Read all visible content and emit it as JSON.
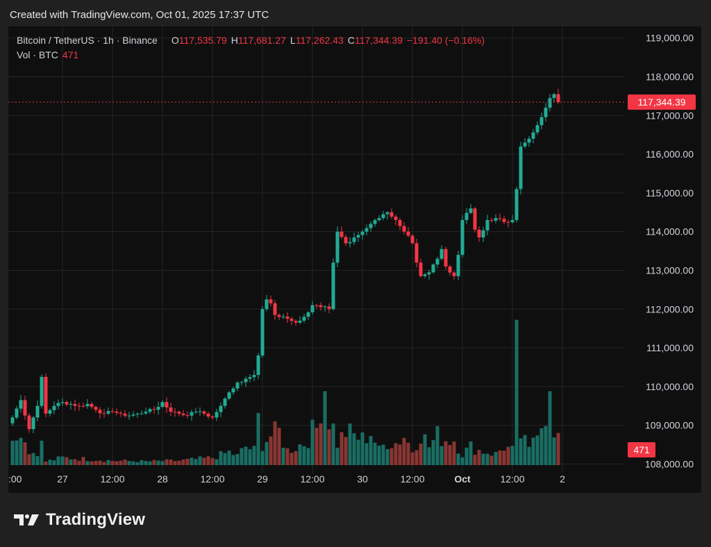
{
  "created_text": "Created with TradingView.com, Oct 01, 2025 17:37 UTC",
  "legend": {
    "symbol": "Bitcoin / TetherUS · 1h · Binance",
    "o_label": "O",
    "o_value": "117,535.79",
    "h_label": "H",
    "h_value": "117,681.27",
    "l_label": "L",
    "l_value": "117,262.43",
    "c_label": "C",
    "c_value": "117,344.39",
    "change": "−191.40 (−0.16%)",
    "vol_label": "Vol · BTC",
    "vol_value": "471"
  },
  "brand": "TradingView",
  "colors": {
    "up": "#22ab94",
    "down": "#f23645",
    "up_vol": "#1a6e63",
    "down_vol": "#8a3633",
    "panel": "#0f0f0f",
    "grid": "#262626",
    "text": "#d1d4dc"
  },
  "chart_data": {
    "type": "candlestick",
    "symbol": "Bitcoin / TetherUS",
    "interval": "1h",
    "exchange": "Binance",
    "y_axis": {
      "ticks": [
        108000,
        109000,
        110000,
        111000,
        112000,
        113000,
        114000,
        115000,
        116000,
        117000,
        118000,
        119000
      ],
      "tick_labels": [
        "108,000.00",
        "109,000.00",
        "110,000.00",
        "111,000.00",
        "112,000.00",
        "113,000.00",
        "114,000.00",
        "115,000.00",
        "116,000.00",
        "117,000.00",
        "118,000.00",
        "119,000.00"
      ],
      "range": [
        107900,
        119300
      ]
    },
    "x_axis": {
      "labels": [
        ":00",
        "27",
        "12:00",
        "28",
        "12:00",
        "29",
        "12:00",
        "30",
        "12:00",
        "Oct",
        "12:00",
        "2"
      ],
      "label_bar_index": [
        -1,
        12,
        24,
        36,
        48,
        60,
        72,
        84,
        96,
        108,
        120,
        132
      ],
      "bar_count": 133
    },
    "last_price": 117344.39,
    "last_price_label": "117,344.39",
    "last_volume_label": "471",
    "volume_max": 3200,
    "anchors": [
      [
        0,
        109200
      ],
      [
        2,
        109650
      ],
      [
        4,
        108900
      ],
      [
        6,
        109500
      ],
      [
        7,
        110250
      ],
      [
        8,
        109300
      ],
      [
        10,
        109500
      ],
      [
        12,
        109600
      ],
      [
        14,
        109550
      ],
      [
        16,
        109500
      ],
      [
        18,
        109550
      ],
      [
        20,
        109400
      ],
      [
        22,
        109300
      ],
      [
        24,
        109350
      ],
      [
        26,
        109300
      ],
      [
        28,
        109250
      ],
      [
        30,
        109300
      ],
      [
        32,
        109350
      ],
      [
        34,
        109400
      ],
      [
        36,
        109600
      ],
      [
        38,
        109350
      ],
      [
        40,
        109300
      ],
      [
        42,
        109250
      ],
      [
        44,
        109350
      ],
      [
        46,
        109300
      ],
      [
        48,
        109200
      ],
      [
        50,
        109500
      ],
      [
        52,
        109850
      ],
      [
        54,
        110100
      ],
      [
        56,
        110200
      ],
      [
        58,
        110300
      ],
      [
        59,
        110800
      ],
      [
        60,
        112000
      ],
      [
        61,
        112250
      ],
      [
        62,
        112150
      ],
      [
        63,
        111850
      ],
      [
        64,
        111800
      ],
      [
        66,
        111750
      ],
      [
        68,
        111650
      ],
      [
        70,
        111800
      ],
      [
        72,
        112100
      ],
      [
        74,
        112050
      ],
      [
        76,
        112000
      ],
      [
        77,
        113200
      ],
      [
        78,
        114000
      ],
      [
        80,
        113700
      ],
      [
        82,
        113850
      ],
      [
        84,
        114000
      ],
      [
        86,
        114200
      ],
      [
        88,
        114350
      ],
      [
        89,
        114450
      ],
      [
        90,
        114500
      ],
      [
        92,
        114300
      ],
      [
        94,
        114000
      ],
      [
        96,
        113700
      ],
      [
        97,
        113200
      ],
      [
        98,
        112850
      ],
      [
        100,
        112950
      ],
      [
        102,
        113300
      ],
      [
        103,
        113550
      ],
      [
        104,
        113100
      ],
      [
        106,
        112850
      ],
      [
        107,
        113400
      ],
      [
        108,
        114300
      ],
      [
        110,
        114600
      ],
      [
        111,
        114050
      ],
      [
        112,
        113850
      ],
      [
        114,
        114300
      ],
      [
        116,
        114350
      ],
      [
        118,
        114250
      ],
      [
        120,
        114300
      ],
      [
        121,
        115100
      ],
      [
        122,
        116200
      ],
      [
        124,
        116400
      ],
      [
        126,
        116750
      ],
      [
        128,
        117200
      ],
      [
        129,
        117450
      ],
      [
        130,
        117550
      ],
      [
        131,
        117344
      ]
    ],
    "volume_profile": [
      [
        0,
        600
      ],
      [
        1,
        1000
      ],
      [
        2,
        800
      ],
      [
        3,
        900
      ],
      [
        4,
        300
      ],
      [
        6,
        400
      ],
      [
        7,
        550
      ],
      [
        8,
        100
      ],
      [
        12,
        200
      ],
      [
        20,
        150
      ],
      [
        24,
        120
      ],
      [
        32,
        100
      ],
      [
        40,
        120
      ],
      [
        48,
        200
      ],
      [
        52,
        350
      ],
      [
        54,
        250
      ],
      [
        56,
        500
      ],
      [
        58,
        400
      ],
      [
        59,
        1200
      ],
      [
        60,
        600
      ],
      [
        62,
        800
      ],
      [
        64,
        900
      ],
      [
        66,
        400
      ],
      [
        70,
        600
      ],
      [
        72,
        900
      ],
      [
        73,
        1000
      ],
      [
        74,
        1800
      ],
      [
        75,
        2200
      ],
      [
        76,
        1300
      ],
      [
        77,
        1000
      ],
      [
        78,
        600
      ],
      [
        80,
        900
      ],
      [
        84,
        700
      ],
      [
        86,
        900
      ],
      [
        88,
        400
      ],
      [
        90,
        650
      ],
      [
        92,
        600
      ],
      [
        94,
        800
      ],
      [
        96,
        400
      ],
      [
        98,
        900
      ],
      [
        100,
        500
      ],
      [
        102,
        800
      ],
      [
        104,
        700
      ],
      [
        106,
        700
      ],
      [
        108,
        300
      ],
      [
        110,
        500
      ],
      [
        112,
        400
      ],
      [
        116,
        300
      ],
      [
        118,
        500
      ],
      [
        120,
        400
      ],
      [
        121,
        2900
      ],
      [
        122,
        800
      ],
      [
        124,
        400
      ],
      [
        126,
        1200
      ],
      [
        127,
        1300
      ],
      [
        128,
        1500
      ],
      [
        129,
        1700
      ],
      [
        130,
        700
      ],
      [
        131,
        500
      ]
    ]
  }
}
